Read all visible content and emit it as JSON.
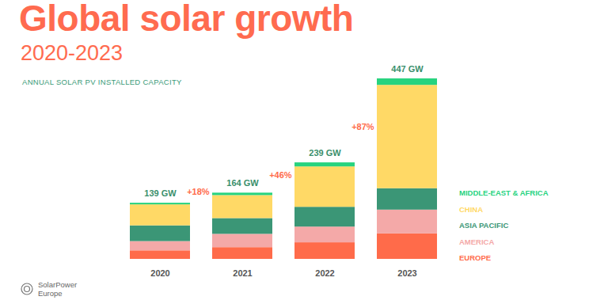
{
  "chart_data": {
    "type": "bar",
    "stacked": true,
    "title": "Global solar growth",
    "subtitle": "2020-2023",
    "ylabel": "ANNUAL SOLAR PV INSTALLED CAPACITY",
    "categories": [
      "2020",
      "2021",
      "2022",
      "2023"
    ],
    "series": [
      {
        "name": "EUROPE",
        "color": "#ff6b4a",
        "values": [
          21,
          29,
          41,
          63
        ]
      },
      {
        "name": "AMERICA",
        "color": "#f4a9a8",
        "values": [
          23,
          33,
          39,
          59
        ]
      },
      {
        "name": "ASIA PACIFIC",
        "color": "#3b9676",
        "values": [
          39,
          39,
          49,
          53
        ]
      },
      {
        "name": "CHINA",
        "color": "#ffd966",
        "values": [
          52,
          57,
          100,
          256
        ]
      },
      {
        "name": "MIDDLE-EAST & AFRICA",
        "color": "#27d37f",
        "values": [
          4,
          6,
          10,
          16
        ]
      }
    ],
    "total_labels": [
      "139 GW",
      "164 GW",
      "239 GW",
      "447 GW"
    ],
    "annotations": [
      {
        "text": "+18%",
        "from": "2020",
        "to": "2021"
      },
      {
        "text": "+46%",
        "from": "2021",
        "to": "2022"
      },
      {
        "text": "+87%",
        "from": "2022",
        "to": "2023"
      }
    ],
    "ylim": [
      0,
      500
    ],
    "tick_labels": "x",
    "legend": "right",
    "source": [
      "SolarPower",
      "Europe"
    ]
  }
}
